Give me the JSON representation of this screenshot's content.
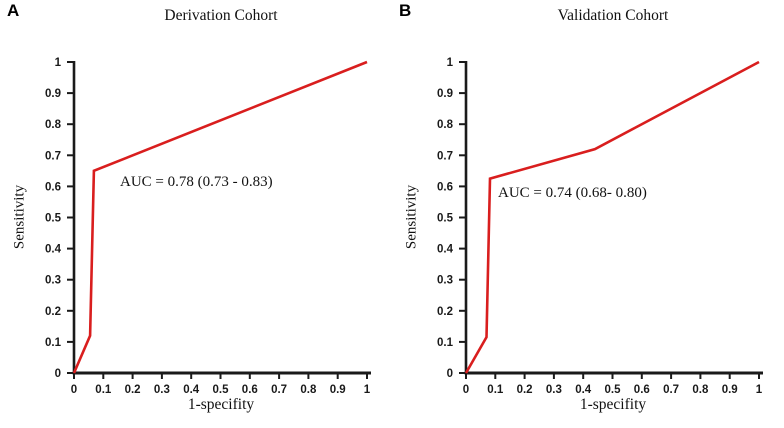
{
  "figure_background": "#ffffff",
  "axis_color": "#1a1a1a",
  "curve_color": "#d91e1e",
  "chart_data": [
    {
      "type": "line",
      "panel_label": "A",
      "title": "Derivation Cohort",
      "xlabel": "1-specifity",
      "ylabel": "Sensitivity",
      "xlim": [
        0,
        1
      ],
      "ylim": [
        0,
        1
      ],
      "grid": false,
      "legend": "none",
      "x_tick_values": [
        0,
        0.1,
        0.2,
        0.3,
        0.4,
        0.5,
        0.6,
        0.7,
        0.8,
        0.9,
        1
      ],
      "x_tick_labels": [
        "0",
        "0.1",
        "0.2",
        "0.3",
        "0.4",
        "0.5",
        "0.6",
        "0.7",
        "0.8",
        "0.9",
        "1"
      ],
      "y_tick_values": [
        0,
        0.1,
        0.2,
        0.3,
        0.4,
        0.5,
        0.6,
        0.7,
        0.8,
        0.9,
        1
      ],
      "y_tick_labels": [
        "0",
        "0.1",
        "0.2",
        "0.3",
        "0.4",
        "0.5",
        "0.6",
        "0.7",
        "0.8",
        "0.9",
        "1"
      ],
      "annotation": "AUC = 0.78 (0.73 - 0.83)",
      "auc": 0.78,
      "auc_ci_low": 0.73,
      "auc_ci_high": 0.83,
      "series": [
        {
          "name": "ROC curve",
          "color": "#d91e1e",
          "points": [
            [
              0,
              0
            ],
            [
              0.055,
              0.12
            ],
            [
              0.068,
              0.65
            ],
            [
              1,
              1
            ]
          ]
        }
      ]
    },
    {
      "type": "line",
      "panel_label": "B",
      "title": "Validation Cohort",
      "xlabel": "1-specifity",
      "ylabel": "Sensitivity",
      "xlim": [
        0,
        1
      ],
      "ylim": [
        0,
        1
      ],
      "grid": false,
      "legend": "none",
      "x_tick_values": [
        0,
        0.1,
        0.2,
        0.3,
        0.4,
        0.5,
        0.6,
        0.7,
        0.8,
        0.9,
        1
      ],
      "x_tick_labels": [
        "0",
        "0.1",
        "0.2",
        "0.3",
        "0.4",
        "0.5",
        "0.6",
        "0.7",
        "0.8",
        "0.9",
        "1"
      ],
      "y_tick_values": [
        0,
        0.1,
        0.2,
        0.3,
        0.4,
        0.5,
        0.6,
        0.7,
        0.8,
        0.9,
        1
      ],
      "y_tick_labels": [
        "0",
        "0.1",
        "0.2",
        "0.3",
        "0.4",
        "0.5",
        "0.6",
        "0.7",
        "0.8",
        "0.9",
        "1"
      ],
      "annotation": "AUC = 0.74 (0.68- 0.80)",
      "auc": 0.74,
      "auc_ci_low": 0.68,
      "auc_ci_high": 0.8,
      "series": [
        {
          "name": "ROC curve",
          "color": "#d91e1e",
          "points": [
            [
              0,
              0
            ],
            [
              0.07,
              0.115
            ],
            [
              0.082,
              0.625
            ],
            [
              0.44,
              0.72
            ],
            [
              1,
              1
            ]
          ]
        }
      ]
    }
  ]
}
